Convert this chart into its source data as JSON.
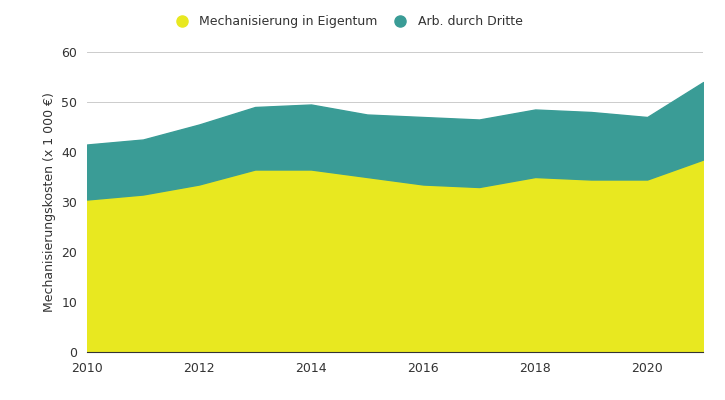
{
  "years": [
    2010,
    2011,
    2012,
    2013,
    2014,
    2015,
    2016,
    2017,
    2018,
    2019,
    2020,
    2021
  ],
  "mechanisierung": [
    30.5,
    31.5,
    33.5,
    36.5,
    36.5,
    35.0,
    33.5,
    33.0,
    35.0,
    34.5,
    34.5,
    38.5
  ],
  "arb_dritte": [
    11.0,
    11.0,
    12.0,
    12.5,
    13.0,
    12.5,
    13.5,
    13.5,
    13.5,
    13.5,
    12.5,
    15.5
  ],
  "color_mechanisierung": "#e8e820",
  "color_arb_dritte": "#3a9c96",
  "label_mechanisierung": "Mechanisierung in Eigentum",
  "label_arb_dritte": "Arb. durch Dritte",
  "ylabel": "Mechanisierungskosten (x 1 000 €)",
  "ylim": [
    0,
    60
  ],
  "yticks": [
    0,
    10,
    20,
    30,
    40,
    50,
    60
  ],
  "xlim": [
    2010,
    2021
  ],
  "xticks": [
    2010,
    2012,
    2014,
    2016,
    2018,
    2020
  ],
  "background_color": "#ffffff",
  "grid_color": "#cccccc",
  "text_color": "#333333",
  "legend_fontsize": 9,
  "axis_fontsize": 9,
  "tick_fontsize": 9
}
